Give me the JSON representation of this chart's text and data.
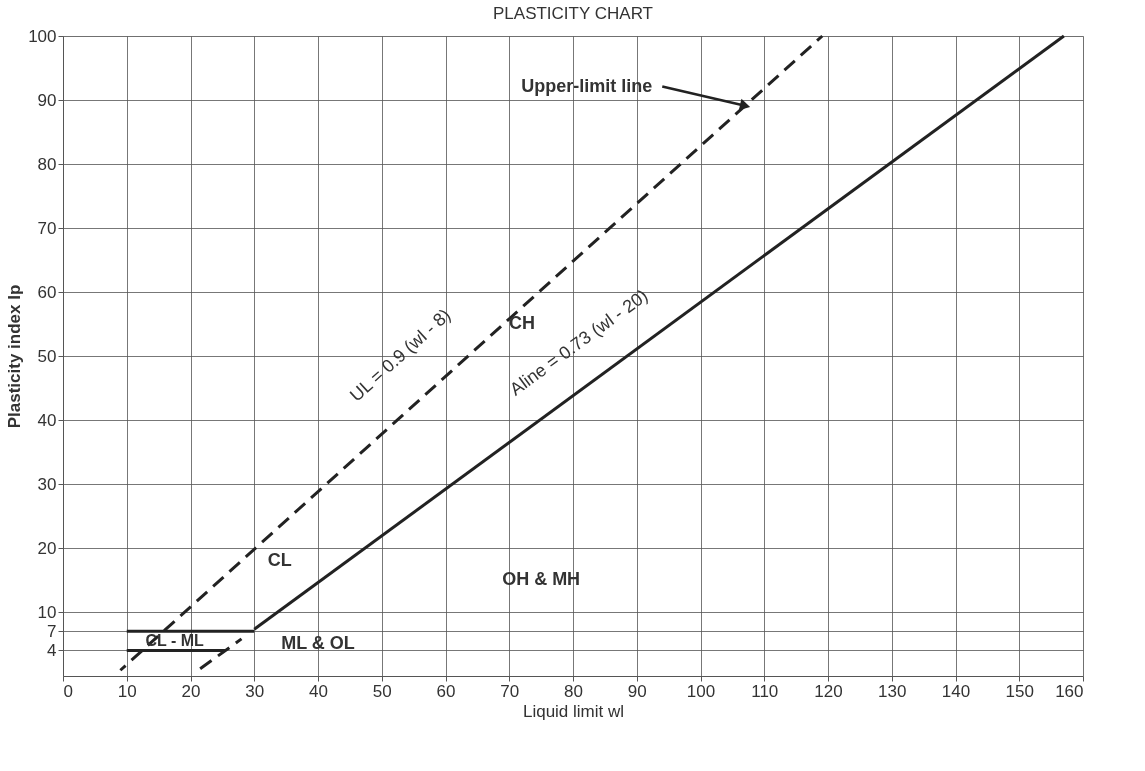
{
  "chart_data": {
    "type": "line",
    "title": "PLASTICITY CHART",
    "xlabel": "Liquid limit wl",
    "ylabel": "Plasticity index Ip",
    "xlim": [
      0,
      160
    ],
    "ylim": [
      0,
      100
    ],
    "xticks": [
      0,
      10,
      20,
      30,
      40,
      50,
      60,
      70,
      80,
      90,
      100,
      110,
      120,
      130,
      140,
      150,
      160
    ],
    "yticks": [
      4,
      7,
      10,
      20,
      30,
      40,
      50,
      60,
      70,
      80,
      90,
      100
    ],
    "grid": true,
    "marker": "none",
    "series": [
      {
        "color": "#222222",
        "line_style": "solid",
        "x": [
          30,
          157
        ],
        "values": [
          7.3,
          100
        ]
      },
      {
        "color": "#222222",
        "line_style": "dashed",
        "x": [
          9,
          119.1
        ],
        "values": [
          0.9,
          100
        ]
      },
      {
        "color": "#222222",
        "line_style": "solid",
        "x": [
          10,
          30
        ],
        "values": [
          7,
          7
        ]
      },
      {
        "color": "#222222",
        "line_style": "solid",
        "x": [
          10,
          25.5
        ],
        "values": [
          4,
          4
        ]
      },
      {
        "color": "#222222",
        "line_style": "dashed",
        "x": [
          20.5,
          28
        ],
        "values": [
          0.4,
          5.8
        ]
      }
    ],
    "annotations": [
      {
        "text": "Upper-limit line",
        "x": 107,
        "y": 89.1
      },
      "UL = 0.9 (wl - 8)",
      "Aline = 0.73 (wl - 20)",
      "CH",
      "CL",
      "OH & MH",
      "ML & OL",
      "CL - ML"
    ]
  }
}
